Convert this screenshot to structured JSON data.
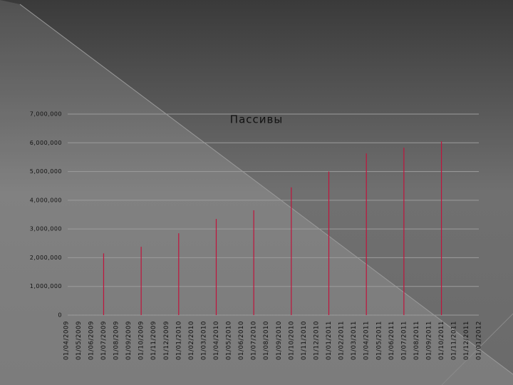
{
  "chart_data": {
    "type": "bar",
    "title": "Пассивы",
    "categories": [
      "01/04/2009",
      "01/05/2009",
      "01/06/2009",
      "01/07/2009",
      "01/08/2009",
      "01/09/2009",
      "01/10/2009",
      "01/11/2009",
      "01/12/2009",
      "01/01/2010",
      "01/02/2010",
      "01/03/2010",
      "01/04/2010",
      "01/05/2010",
      "01/06/2010",
      "01/07/2010",
      "01/08/2010",
      "01/09/2010",
      "01/10/2010",
      "01/11/2010",
      "01/12/2010",
      "01/01/2011",
      "01/02/2011",
      "01/03/2011",
      "01/04/2011",
      "01/05/2011",
      "01/06/2011",
      "01/07/2011",
      "01/08/2011",
      "01/09/2011",
      "01/10/2011",
      "01/11/2011",
      "01/12/2011",
      "01/01/2012"
    ],
    "values": [
      null,
      null,
      null,
      2150000,
      null,
      null,
      2380000,
      null,
      null,
      2850000,
      null,
      null,
      3350000,
      null,
      null,
      3650000,
      null,
      null,
      4450000,
      null,
      null,
      5000000,
      null,
      null,
      5630000,
      null,
      null,
      5830000,
      null,
      null,
      6050000,
      null,
      null,
      null
    ],
    "color": "#c0143c",
    "ylim": [
      0,
      7000000
    ],
    "yticks": [
      0,
      {
        "value": 1000000,
        "label": "1,000,000"
      },
      {
        "value": 2000000,
        "label": "2,000,000"
      },
      {
        "value": 3000000,
        "label": "3,000,000"
      },
      {
        "value": 4000000,
        "label": "4,000,000"
      },
      {
        "value": 5000000,
        "label": "5,000,000"
      },
      {
        "value": 6000000,
        "label": "6,000,000"
      },
      {
        "value": 7000000,
        "label": "7,000,000"
      }
    ],
    "grid": true
  }
}
